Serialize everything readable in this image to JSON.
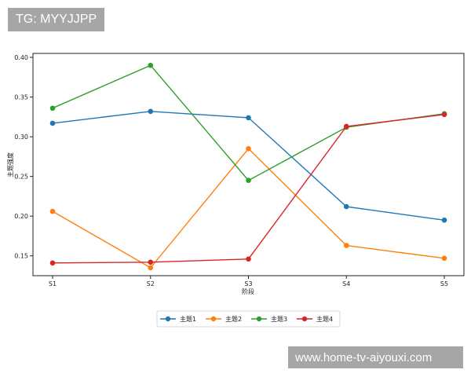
{
  "watermarks": {
    "top": "TG: MYYJJPP",
    "bottom": "www.home-tv-aiyouxi.com"
  },
  "colors": {
    "series": [
      "#1f77b4",
      "#ff7f0e",
      "#2ca02c",
      "#d62728"
    ],
    "axis": "#222222",
    "watermark_bg": "#a6a6a6"
  },
  "chart_data": {
    "type": "line",
    "categories": [
      "S1",
      "S2",
      "S3",
      "S4",
      "S5"
    ],
    "xlabel": "阶段",
    "ylabel": "主题强度",
    "ylim": [
      0.125,
      0.405
    ],
    "yticks": [
      0.15,
      0.2,
      0.25,
      0.3,
      0.35,
      0.4
    ],
    "ytick_labels": [
      "0.15",
      "0.20",
      "0.25",
      "0.30",
      "0.35",
      "0.40"
    ],
    "grid": false,
    "legend_position": "bottom-center",
    "series": [
      {
        "name": "主题1",
        "values": [
          0.317,
          0.332,
          0.324,
          0.212,
          0.195
        ]
      },
      {
        "name": "主题2",
        "values": [
          0.206,
          0.135,
          0.285,
          0.163,
          0.147
        ]
      },
      {
        "name": "主题3",
        "values": [
          0.336,
          0.39,
          0.245,
          0.312,
          0.329
        ]
      },
      {
        "name": "主题4",
        "values": [
          0.141,
          0.142,
          0.146,
          0.313,
          0.328
        ]
      }
    ]
  }
}
